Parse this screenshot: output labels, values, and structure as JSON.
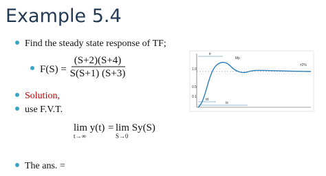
{
  "header": {
    "title": "Example 5.4"
  },
  "items": [
    "Find the steady state response of TF;",
    "Solution,",
    "use F.V.T.",
    "The ans. ="
  ],
  "equation": {
    "lhs": "F(S) =",
    "numerator": "(S+2)(S+4)",
    "denominator": "S(S+1) (S+3)"
  },
  "fvt": {
    "left": "lim y(t)",
    "left_sub": "t→∞",
    "equals": "=",
    "right": "lim Sy(S)",
    "right_sub": "S→0"
  },
  "graph": {
    "labels": [
      "tr",
      "Mp",
      "±2%",
      "1.0",
      "0.5",
      "0.1",
      "td",
      "ts"
    ]
  }
}
